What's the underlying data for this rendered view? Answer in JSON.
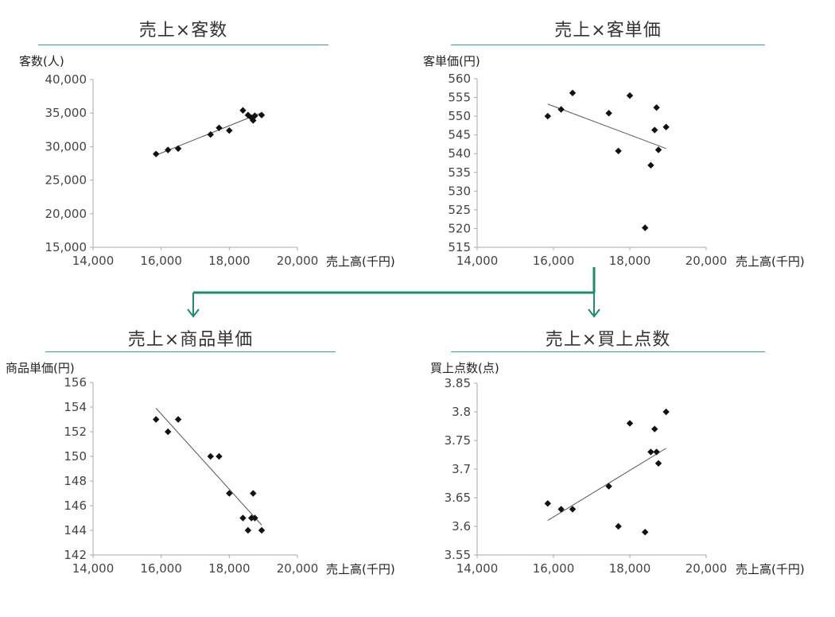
{
  "chart_data": [
    {
      "type": "scatter",
      "title": "売上×客数",
      "ylabel": "客数(人)",
      "xlabel": "売上高(千円)",
      "xlim": [
        14000,
        20000
      ],
      "ylim": [
        15000,
        40000
      ],
      "xticks": [
        "14,000",
        "16,000",
        "18,000",
        "20,000"
      ],
      "yticks": [
        "15,000",
        "20,000",
        "25,000",
        "30,000",
        "35,000",
        "40,000"
      ],
      "trendline": true,
      "points": [
        {
          "x": 15850,
          "y": 28900
        },
        {
          "x": 16200,
          "y": 29500
        },
        {
          "x": 16500,
          "y": 29700
        },
        {
          "x": 17450,
          "y": 31800
        },
        {
          "x": 17700,
          "y": 32800
        },
        {
          "x": 18000,
          "y": 32400
        },
        {
          "x": 18400,
          "y": 35400
        },
        {
          "x": 18550,
          "y": 34700
        },
        {
          "x": 18650,
          "y": 34300
        },
        {
          "x": 18700,
          "y": 33900
        },
        {
          "x": 18750,
          "y": 34600
        },
        {
          "x": 18950,
          "y": 34700
        }
      ]
    },
    {
      "type": "scatter",
      "title": "売上×客単価",
      "ylabel": "客単価(円)",
      "xlabel": "売上高(千円)",
      "xlim": [
        14000,
        20000
      ],
      "ylim": [
        515,
        560
      ],
      "xticks": [
        "14,000",
        "16,000",
        "18,000",
        "20,000"
      ],
      "yticks": [
        "515",
        "520",
        "525",
        "530",
        "535",
        "540",
        "545",
        "550",
        "555",
        "560"
      ],
      "trendline": true,
      "points": [
        {
          "x": 15850,
          "y": 550
        },
        {
          "x": 16200,
          "y": 551.8
        },
        {
          "x": 16500,
          "y": 556.2
        },
        {
          "x": 17450,
          "y": 550.8
        },
        {
          "x": 17700,
          "y": 540.7
        },
        {
          "x": 18000,
          "y": 555.5
        },
        {
          "x": 18400,
          "y": 520.2
        },
        {
          "x": 18550,
          "y": 536.9
        },
        {
          "x": 18650,
          "y": 546.3
        },
        {
          "x": 18700,
          "y": 552.3
        },
        {
          "x": 18750,
          "y": 541
        },
        {
          "x": 18950,
          "y": 547.1
        }
      ]
    },
    {
      "type": "scatter",
      "title": "売上×商品単価",
      "ylabel": "商品単価(円)",
      "xlabel": "売上高(千円)",
      "xlim": [
        14000,
        20000
      ],
      "ylim": [
        142,
        156
      ],
      "xticks": [
        "14,000",
        "16,000",
        "18,000",
        "20,000"
      ],
      "yticks": [
        "142",
        "144",
        "146",
        "148",
        "150",
        "152",
        "154",
        "156"
      ],
      "trendline": true,
      "points": [
        {
          "x": 15850,
          "y": 153
        },
        {
          "x": 16200,
          "y": 152
        },
        {
          "x": 16500,
          "y": 153
        },
        {
          "x": 17450,
          "y": 150
        },
        {
          "x": 17700,
          "y": 150
        },
        {
          "x": 18000,
          "y": 147
        },
        {
          "x": 18400,
          "y": 145
        },
        {
          "x": 18550,
          "y": 144
        },
        {
          "x": 18650,
          "y": 145
        },
        {
          "x": 18700,
          "y": 147
        },
        {
          "x": 18750,
          "y": 145
        },
        {
          "x": 18950,
          "y": 144
        }
      ]
    },
    {
      "type": "scatter",
      "title": "売上×買上点数",
      "ylabel": "買上点数(点)",
      "xlabel": "売上高(千円)",
      "xlim": [
        14000,
        20000
      ],
      "ylim": [
        3.55,
        3.85
      ],
      "xticks": [
        "14,000",
        "16,000",
        "18,000",
        "20,000"
      ],
      "yticks": [
        "3.55",
        "3.6",
        "3.65",
        "3.7",
        "3.75",
        "3.8",
        "3.85"
      ],
      "trendline": true,
      "points": [
        {
          "x": 15850,
          "y": 3.64
        },
        {
          "x": 16200,
          "y": 3.63
        },
        {
          "x": 16500,
          "y": 3.63
        },
        {
          "x": 17450,
          "y": 3.67
        },
        {
          "x": 17700,
          "y": 3.6
        },
        {
          "x": 18000,
          "y": 3.78
        },
        {
          "x": 18400,
          "y": 3.59
        },
        {
          "x": 18550,
          "y": 3.73
        },
        {
          "x": 18650,
          "y": 3.77
        },
        {
          "x": 18700,
          "y": 3.73
        },
        {
          "x": 18750,
          "y": 3.71
        },
        {
          "x": 18950,
          "y": 3.8
        }
      ]
    }
  ],
  "colors": {
    "accent": "#1f8a70",
    "underline": "#3a9f8f",
    "marker": "#111111",
    "trend": "#555555",
    "axis": "#aaaaaa"
  }
}
